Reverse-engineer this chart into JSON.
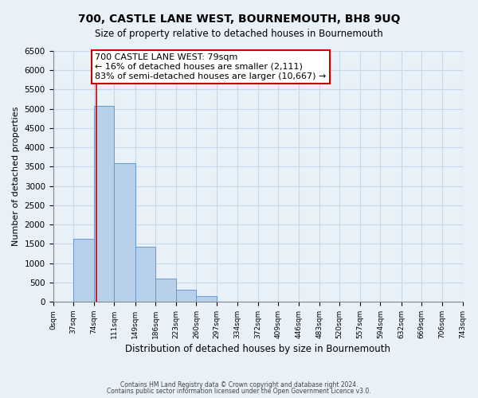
{
  "title": "700, CASTLE LANE WEST, BOURNEMOUTH, BH8 9UQ",
  "subtitle": "Size of property relative to detached houses in Bournemouth",
  "xlabel": "Distribution of detached houses by size in Bournemouth",
  "ylabel": "Number of detached properties",
  "footer_line1": "Contains HM Land Registry data © Crown copyright and database right 2024.",
  "footer_line2": "Contains public sector information licensed under the Open Government Licence v3.0.",
  "bin_edges": [
    0,
    37,
    74,
    111,
    149,
    186,
    223,
    260,
    297,
    334,
    372,
    409,
    446,
    483,
    520,
    557,
    594,
    632,
    669,
    706,
    743
  ],
  "bar_heights": [
    0,
    1620,
    5080,
    3580,
    1420,
    590,
    300,
    150,
    0,
    0,
    0,
    0,
    0,
    0,
    0,
    0,
    0,
    0,
    0,
    0
  ],
  "bar_color": "#b8d0ea",
  "bar_edge_color": "#6699cc",
  "property_line_x": 79,
  "annotation_line1": "700 CASTLE LANE WEST: 79sqm",
  "annotation_line2": "← 16% of detached houses are smaller (2,111)",
  "annotation_line3": "83% of semi-detached houses are larger (10,667) →",
  "ylim": [
    0,
    6500
  ],
  "yticks": [
    0,
    500,
    1000,
    1500,
    2000,
    2500,
    3000,
    3500,
    4000,
    4500,
    5000,
    5500,
    6000,
    6500
  ],
  "tick_labels": [
    "0sqm",
    "37sqm",
    "74sqm",
    "111sqm",
    "149sqm",
    "186sqm",
    "223sqm",
    "260sqm",
    "297sqm",
    "334sqm",
    "372sqm",
    "409sqm",
    "446sqm",
    "483sqm",
    "520sqm",
    "557sqm",
    "594sqm",
    "632sqm",
    "669sqm",
    "706sqm",
    "743sqm"
  ],
  "grid_color": "#c8d8e8",
  "background_color": "#e8f0f8",
  "plot_bg_color": "#e8f0f8",
  "annotation_bg": "#ffffff",
  "annotation_border": "#cc0000",
  "line_color": "#cc0000"
}
